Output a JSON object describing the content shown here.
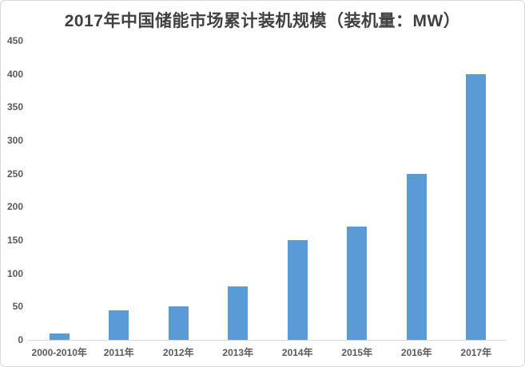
{
  "chart_data": {
    "type": "bar",
    "title": "2017年中国储能市场累计装机规模（装机量：MW）",
    "categories": [
      "2000-2010年",
      "2011年",
      "2012年",
      "2013年",
      "2014年",
      "2015年",
      "2016年",
      "2017年"
    ],
    "values": [
      10,
      45,
      50,
      80,
      150,
      170,
      250,
      400
    ],
    "xlabel": "",
    "ylabel": "",
    "ylim": [
      0,
      450
    ],
    "y_ticks": [
      0,
      50,
      100,
      150,
      200,
      250,
      300,
      350,
      400,
      450
    ],
    "grid": false,
    "legend": false,
    "colors": {
      "bar": "#5B9BD5",
      "title_text": "#404040",
      "axis_label_text": "#595959",
      "axis_line": "#d9d9d9",
      "background": "#ffffff",
      "frame_border": "#d9d9d9"
    }
  }
}
